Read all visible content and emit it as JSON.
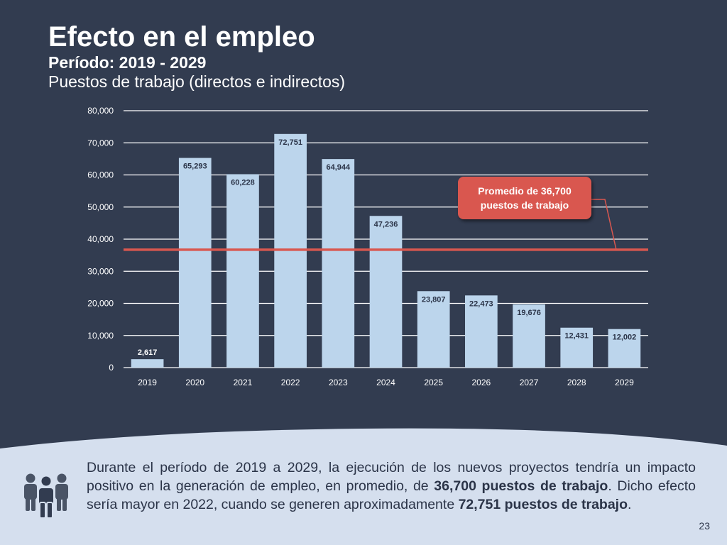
{
  "slide": {
    "title": "Efecto en el empleo",
    "subtitle": "Período: 2019 - 2029",
    "subtitle2": "Puestos de trabajo (directos e indirectos)",
    "callout_line1": "Promedio de 36,700",
    "callout_line2": "puestos de trabajo",
    "summary": {
      "part1": "Durante el período de 2019 a 2029, la ejecución de los nuevos proyectos tendría un impacto positivo en la generación de empleo, en promedio, de ",
      "bold1": "36,700 puestos de trabajo",
      "part2": ". Dicho efecto sería mayor en 2022, cuando se generen aproximadamente ",
      "bold2": "72,751 puestos de trabajo",
      "part3": "."
    },
    "page_number": "23",
    "icon": "people-group-icon"
  },
  "colors": {
    "background": "#323c50",
    "bar": "#bcd5ec",
    "average_line": "#d9574f",
    "callout": "#d9574f",
    "bottom_panel": "#d5dfee"
  },
  "chart_data": {
    "type": "bar",
    "categories": [
      "2019",
      "2020",
      "2021",
      "2022",
      "2023",
      "2024",
      "2025",
      "2026",
      "2027",
      "2028",
      "2029"
    ],
    "values": [
      2617,
      65293,
      60228,
      72751,
      64944,
      47236,
      23807,
      22473,
      19676,
      12431,
      12002
    ],
    "data_labels": [
      "2,617",
      "65,293",
      "60,228",
      "72,751",
      "64,944",
      "47,236",
      "23,807",
      "22,473",
      "19,676",
      "12,431",
      "12,002"
    ],
    "y_ticks": [
      0,
      10000,
      20000,
      30000,
      40000,
      50000,
      60000,
      70000,
      80000
    ],
    "y_tick_labels": [
      "0",
      "10,000",
      "20,000",
      "30,000",
      "40,000",
      "50,000",
      "60,000",
      "70,000",
      "80,000"
    ],
    "ylim": [
      0,
      80000
    ],
    "average": 36700,
    "title": "",
    "xlabel": "",
    "ylabel": "",
    "grid": true,
    "legend": "none"
  }
}
